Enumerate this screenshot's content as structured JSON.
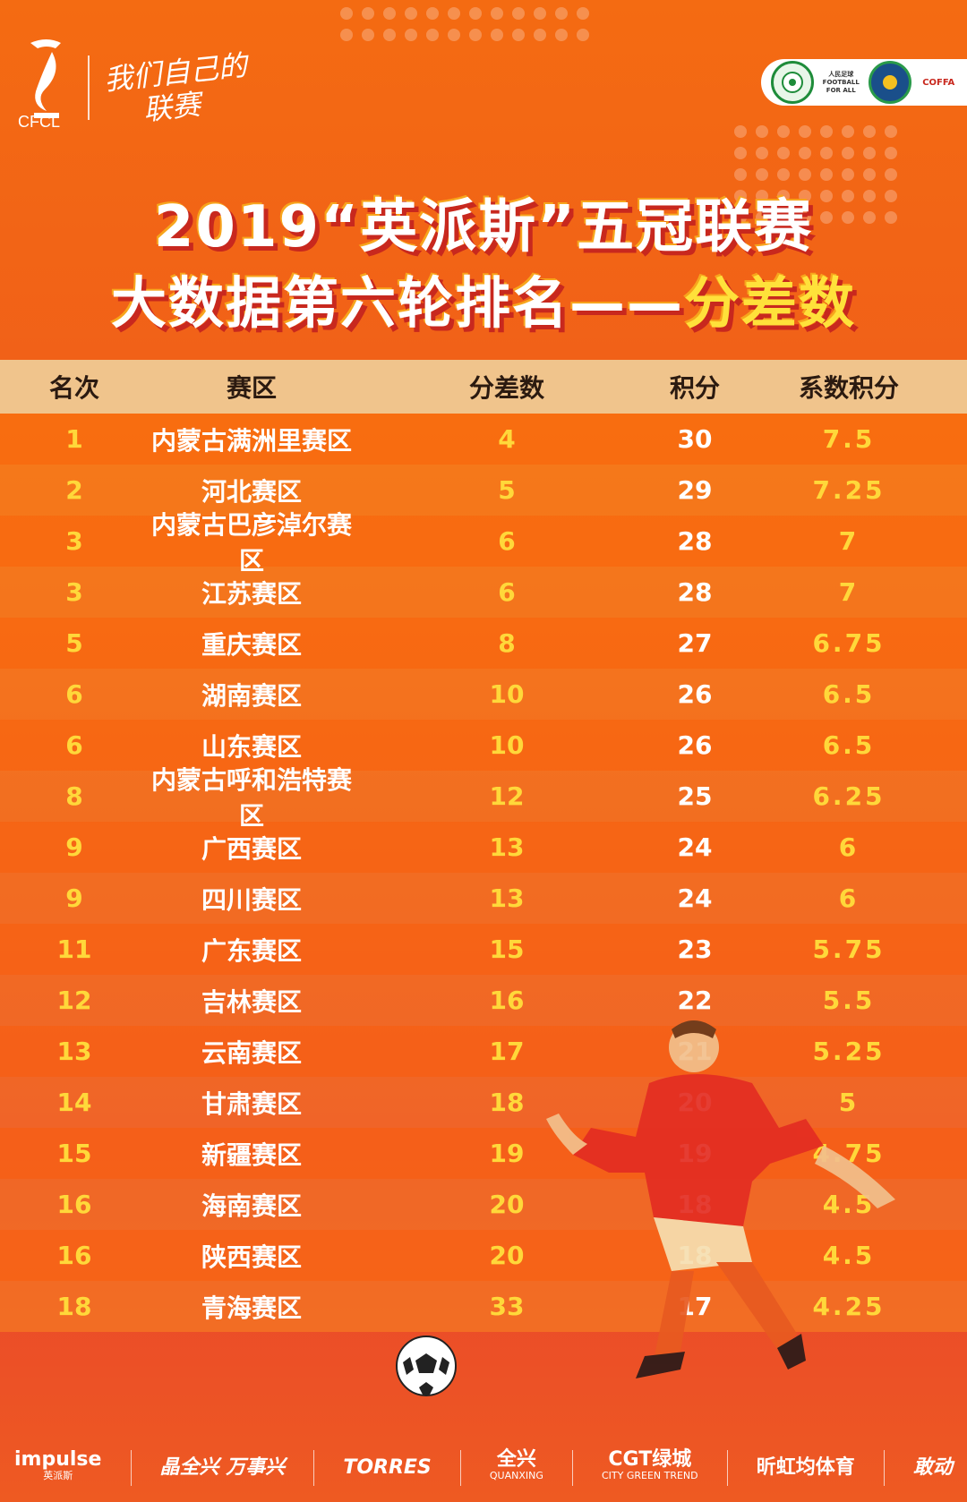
{
  "header": {
    "brand_text": "CFCL",
    "slogan_line1": "我们自己的",
    "slogan_line2": "联赛",
    "partners": [
      {
        "name": "中国业余足球联赛",
        "icon": "green-football-logo",
        "label": ""
      },
      {
        "name": "人民足球",
        "icon": "football-for-all-logo",
        "label": "人民足球 FOOTBALL FOR ALL"
      },
      {
        "name": "blue-green-seal-logo",
        "icon": "blue-green-seal-logo",
        "label": ""
      },
      {
        "name": "COFFA",
        "icon": "coffa-logo",
        "label": "COFFA"
      }
    ]
  },
  "title": {
    "line1": "2019“英派斯”五冠联赛",
    "line2_main": "大数据第六轮排名——",
    "line2_highlight": "分差数"
  },
  "table": {
    "headers": [
      "名次",
      "赛区",
      "分差数",
      "积分",
      "系数积分"
    ],
    "rows": [
      {
        "rank": "1",
        "region": "内蒙古满洲里赛区",
        "diff": "4",
        "points": "30",
        "coef": "7.5"
      },
      {
        "rank": "2",
        "region": "河北赛区",
        "diff": "5",
        "points": "29",
        "coef": "7.25"
      },
      {
        "rank": "3",
        "region": "内蒙古巴彦淖尔赛区",
        "diff": "6",
        "points": "28",
        "coef": "7"
      },
      {
        "rank": "3",
        "region": "江苏赛区",
        "diff": "6",
        "points": "28",
        "coef": "7"
      },
      {
        "rank": "5",
        "region": "重庆赛区",
        "diff": "8",
        "points": "27",
        "coef": "6.75"
      },
      {
        "rank": "6",
        "region": "湖南赛区",
        "diff": "10",
        "points": "26",
        "coef": "6.5"
      },
      {
        "rank": "6",
        "region": "山东赛区",
        "diff": "10",
        "points": "26",
        "coef": "6.5"
      },
      {
        "rank": "8",
        "region": "内蒙古呼和浩特赛区",
        "diff": "12",
        "points": "25",
        "coef": "6.25"
      },
      {
        "rank": "9",
        "region": "广西赛区",
        "diff": "13",
        "points": "24",
        "coef": "6"
      },
      {
        "rank": "9",
        "region": "四川赛区",
        "diff": "13",
        "points": "24",
        "coef": "6"
      },
      {
        "rank": "11",
        "region": "广东赛区",
        "diff": "15",
        "points": "23",
        "coef": "5.75"
      },
      {
        "rank": "12",
        "region": "吉林赛区",
        "diff": "16",
        "points": "22",
        "coef": "5.5"
      },
      {
        "rank": "13",
        "region": "云南赛区",
        "diff": "17",
        "points": "21",
        "coef": "5.25"
      },
      {
        "rank": "14",
        "region": "甘肃赛区",
        "diff": "18",
        "points": "20",
        "coef": "5"
      },
      {
        "rank": "15",
        "region": "新疆赛区",
        "diff": "19",
        "points": "19",
        "coef": "4.75"
      },
      {
        "rank": "16",
        "region": "海南赛区",
        "diff": "20",
        "points": "18",
        "coef": "4.5"
      },
      {
        "rank": "16",
        "region": "陕西赛区",
        "diff": "20",
        "points": "18",
        "coef": "4.5"
      },
      {
        "rank": "18",
        "region": "青海赛区",
        "diff": "33",
        "points": "17",
        "coef": "4.25"
      }
    ]
  },
  "sponsors": [
    {
      "main": "impulse",
      "sub": "英派斯"
    },
    {
      "main": "晶全兴 万事兴",
      "sub": ""
    },
    {
      "main": "TORRES",
      "sub": ""
    },
    {
      "main": "全兴",
      "sub": "QUANXING"
    },
    {
      "main": "CGT绿城",
      "sub": "CITY GREEN TREND"
    },
    {
      "main": "昕虹均体育",
      "sub": ""
    },
    {
      "main": "敢动",
      "sub": ""
    }
  ],
  "colors": {
    "bg_top": "#f46b12",
    "bg_bottom": "#e8402e",
    "header_row": "#f0c48c",
    "accent_yellow": "#ffd83a",
    "shadow_red": "#c8281e"
  }
}
